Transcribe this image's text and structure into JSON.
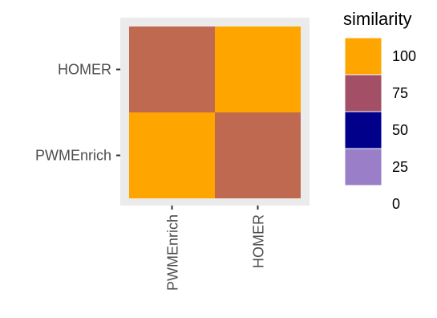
{
  "chart_data": {
    "type": "heatmap",
    "x_categories": [
      "PWMEnrich",
      "HOMER"
    ],
    "y_categories": [
      "PWMEnrich",
      "HOMER"
    ],
    "cells": [
      {
        "x": "PWMEnrich",
        "y": "HOMER",
        "value": 90
      },
      {
        "x": "HOMER",
        "y": "HOMER",
        "value": 100
      },
      {
        "x": "PWMEnrich",
        "y": "PWMEnrich",
        "value": 100
      },
      {
        "x": "HOMER",
        "y": "PWMEnrich",
        "value": 90
      }
    ],
    "legend": {
      "title": "similarity",
      "placement": "right",
      "entries": [
        {
          "label": "100",
          "color": "#FFA500"
        },
        {
          "label": "75",
          "color": "#A35066"
        },
        {
          "label": "50",
          "color": "#00008B"
        },
        {
          "label": "25",
          "color": "#9A7EC8"
        },
        {
          "label": "0",
          "color": "#FFFFFF"
        }
      ]
    },
    "cell_colors": {
      "90": "#C06951",
      "100": "#FFA500"
    },
    "panel_background": "#EBEBEB",
    "grid": false
  }
}
